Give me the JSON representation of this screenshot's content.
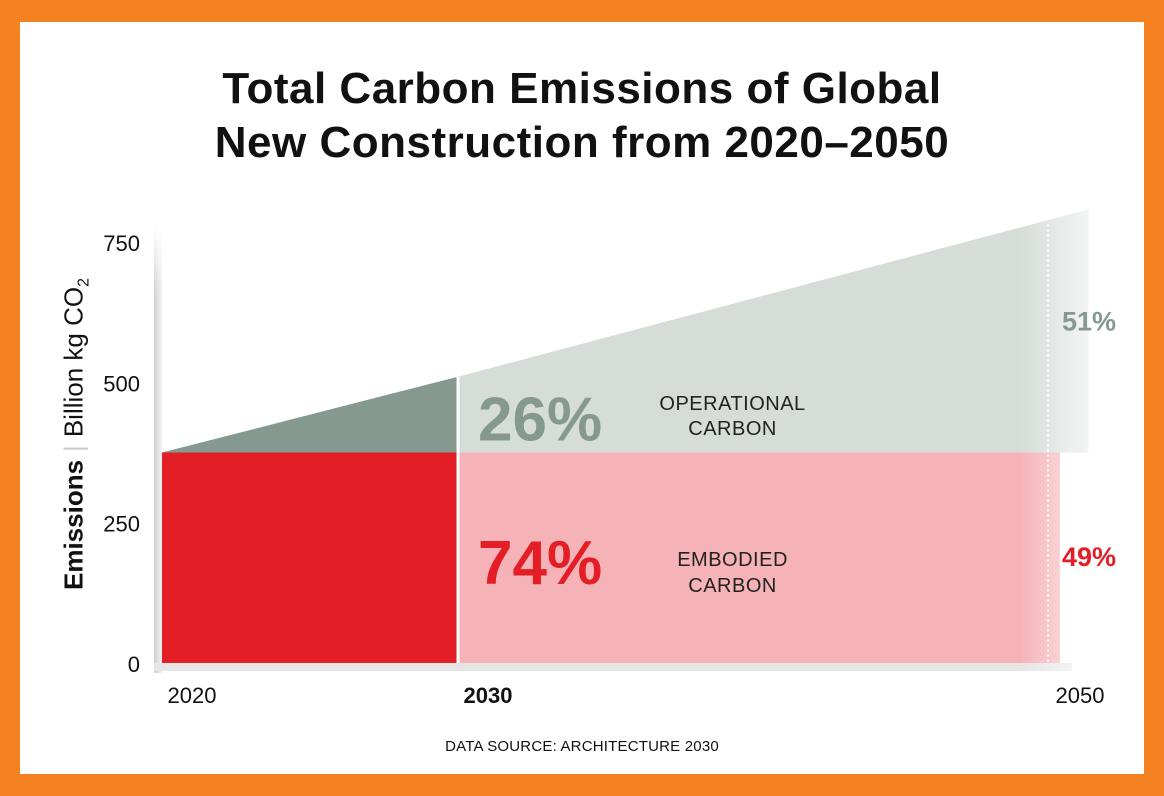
{
  "chart_data": {
    "type": "area",
    "title_lines": [
      "Total Carbon Emissions of Global",
      "New Construction from 2020–2050"
    ],
    "ylabel": {
      "bold": "Emissions",
      "unit": "Billion kg CO",
      "unit_subscript": "2"
    },
    "ylim": [
      0,
      750
    ],
    "yticks": [
      "750",
      "500",
      "250",
      "0"
    ],
    "ytick_values": [
      750,
      500,
      250,
      0
    ],
    "xlim": [
      2020,
      2050
    ],
    "xticks": [
      {
        "label": "2020",
        "value": 2020,
        "bold": false
      },
      {
        "label": "2030",
        "value": 2030,
        "bold": true
      },
      {
        "label": "2050",
        "value": 2050,
        "bold": false
      }
    ],
    "series": [
      {
        "name": "EMBODIED CARBON",
        "name_lines": [
          "EMBODIED",
          "CARBON"
        ],
        "x": [
          2020,
          2030,
          2050
        ],
        "y": [
          375,
          375,
          375
        ]
      },
      {
        "name": "OPERATIONAL CARBON",
        "name_lines": [
          "OPERATIONAL",
          "CARBON"
        ],
        "x": [
          2020,
          2030,
          2050
        ],
        "y": [
          375,
          510,
          790
        ]
      }
    ],
    "annotations": [
      {
        "text": "26%",
        "period": "2020–2030",
        "series": "OPERATIONAL CARBON"
      },
      {
        "text": "74%",
        "period": "2020–2030",
        "series": "EMBODIED CARBON"
      },
      {
        "text": "51%",
        "period": "2050",
        "series": "OPERATIONAL CARBON"
      },
      {
        "text": "49%",
        "period": "2050",
        "series": "EMBODIED CARBON"
      }
    ],
    "colors": {
      "embodied_dark": "#e31e26",
      "embodied_light": "#f5b3b7",
      "operational_dark": "#859990",
      "operational_light": "#d6ddd9",
      "embodied_text": "#e31e26",
      "operational_text": "#859990"
    }
  },
  "source": "DATA SOURCE: ARCHITECTURE 2030",
  "frame_color": "#f58220"
}
